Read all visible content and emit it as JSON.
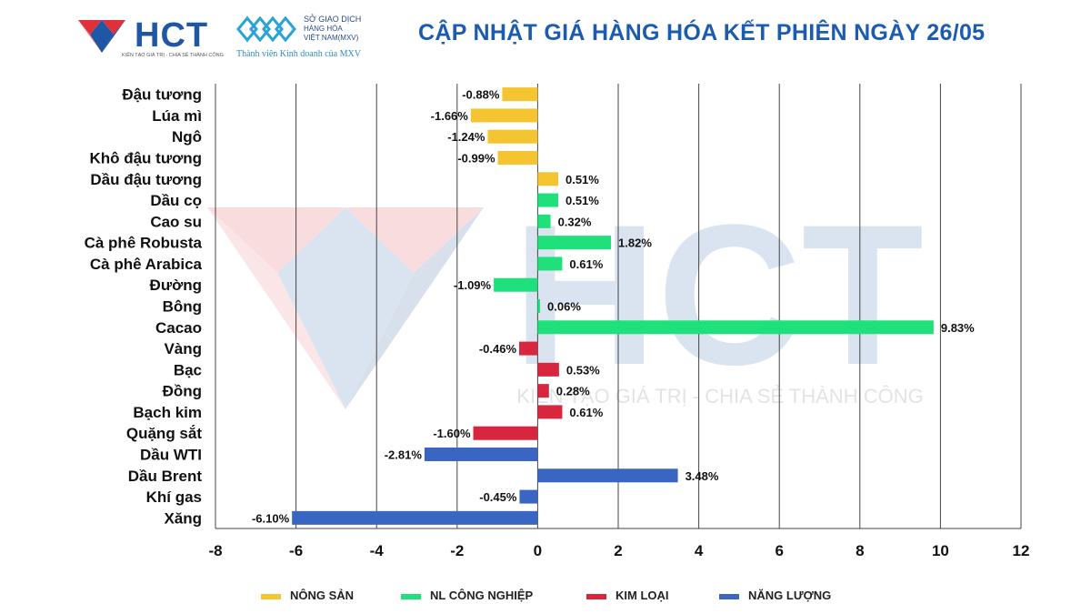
{
  "header": {
    "title": "CẬP NHẬT GIÁ HÀNG HÓA KẾT PHIÊN NGÀY 26/05",
    "logo_text": "HCT",
    "logo_tagline": "KIẾN TẠO GIÁ TRỊ - CHIA SẺ THÀNH CÔNG",
    "mxv_line1": "SỞ GIAO DỊCH",
    "mxv_line2": "HÀNG HÓA",
    "mxv_line3": "VIỆT NAM(MXV)",
    "mxv_sub": "Thành viên Kinh doanh của MXV"
  },
  "watermark": {
    "text": "HCT",
    "tagline": "KIẾN TẠO GIÁ TRỊ - CHIA SẺ THÀNH CÔNG"
  },
  "colors": {
    "nong_san": "#f5c431",
    "nl_cong_nghiep": "#1fe07a",
    "kim_loai": "#d7263d",
    "nang_luong": "#3866c2"
  },
  "chart_data": {
    "type": "bar",
    "orientation": "horizontal",
    "xlim": [
      -8,
      12
    ],
    "x_ticks": [
      "-8",
      "-6",
      "-4",
      "-2",
      "0",
      "2",
      "4",
      "6",
      "8",
      "10",
      "12"
    ],
    "grid": true,
    "legend_position": "bottom",
    "groups": [
      {
        "name": "NÔNG SẢN",
        "color": "#f5c431"
      },
      {
        "name": "NL CÔNG NGHIỆP",
        "color": "#1fe07a"
      },
      {
        "name": "KIM LOẠI",
        "color": "#d7263d"
      },
      {
        "name": "NĂNG LƯỢNG",
        "color": "#3866c2"
      }
    ],
    "categories": [
      "Đậu tương",
      "Lúa mì",
      "Ngô",
      "Khô đậu tương",
      "Dầu đậu tương",
      "Dầu cọ",
      "Cao su",
      "Cà phê Robusta",
      "Cà phê Arabica",
      "Đường",
      "Bông",
      "Cacao",
      "Vàng",
      "Bạc",
      "Đồng",
      "Bạch kim",
      "Quặng sắt",
      "Dầu WTI",
      "Dầu Brent",
      "Khí gas",
      "Xăng"
    ],
    "values": [
      -0.88,
      -1.66,
      -1.24,
      -0.99,
      0.51,
      0.51,
      0.32,
      1.82,
      0.61,
      -1.09,
      0.06,
      9.83,
      -0.46,
      0.53,
      0.28,
      0.61,
      -1.6,
      -2.81,
      3.48,
      -0.45,
      -6.1
    ],
    "labels": [
      "-0.88%",
      "-1.66%",
      "-1.24%",
      "-0.99%",
      "0.51%",
      "0.51%",
      "0.32%",
      "1.82%",
      "0.61%",
      "-1.09%",
      "0.06%",
      "9.83%",
      "-0.46%",
      "0.53%",
      "0.28%",
      "0.61%",
      "-1.60%",
      "-2.81%",
      "3.48%",
      "-0.45%",
      "-6.10%"
    ],
    "group_index": [
      0,
      0,
      0,
      0,
      0,
      1,
      1,
      1,
      1,
      1,
      1,
      1,
      2,
      2,
      2,
      2,
      2,
      3,
      3,
      3,
      3
    ]
  }
}
